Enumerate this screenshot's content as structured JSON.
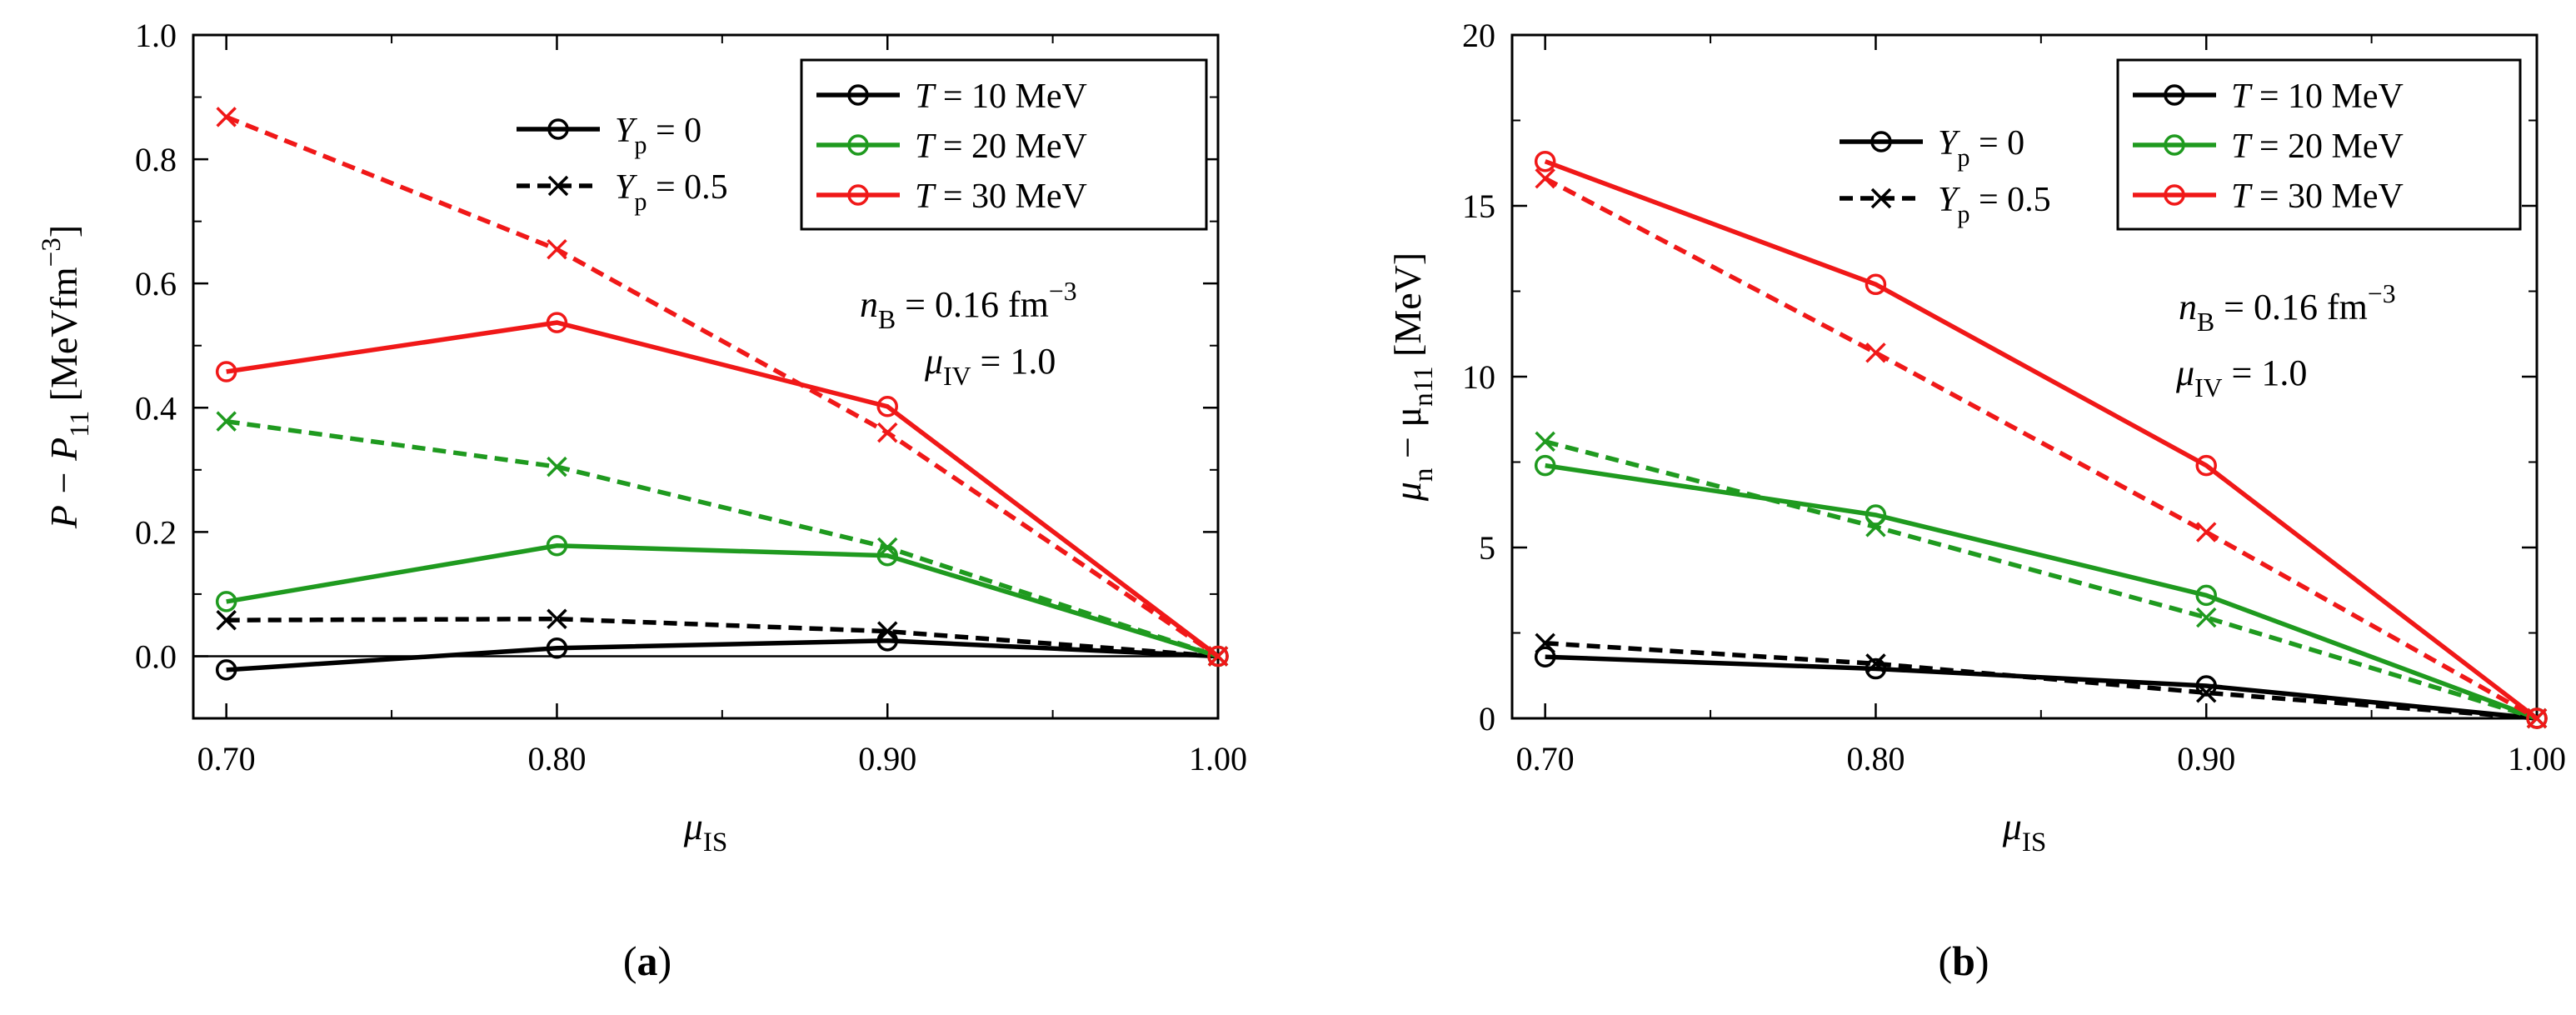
{
  "chart_data": [
    {
      "type": "line",
      "panel_label": [
        "(",
        "a",
        ")"
      ],
      "x": [
        0.7,
        0.8,
        0.9,
        1.0
      ],
      "xlim": [
        0.69,
        1.0
      ],
      "ylim": [
        -0.1,
        1.0
      ],
      "xticks": [
        "0.70",
        "0.80",
        "0.90",
        "1.00"
      ],
      "yticks": [
        "0.0",
        "0.2",
        "0.4",
        "0.6",
        "0.8",
        "1.0"
      ],
      "xlabel": {
        "main": "μ",
        "sub": "IS"
      },
      "ylabel": {
        "a": "P − P",
        "sub": "11",
        "b": " [MeVfm",
        "sup": "−3",
        "c": "]"
      },
      "zero_line": true,
      "legend_style": [
        {
          "text_a": "Y",
          "sub": "p",
          "text_b": " = 0",
          "line": "solid",
          "marker": "circle"
        },
        {
          "text_a": "Y",
          "sub": "p",
          "text_b": " = 0.5",
          "line": "dashed",
          "marker": "x"
        }
      ],
      "legend_temp": [
        {
          "text_a": "T",
          "text_b": " = 10 MeV",
          "color": "#000000"
        },
        {
          "text_a": "T",
          "text_b": " = 20 MeV",
          "color": "#1f9a1f"
        },
        {
          "text_a": "T",
          "text_b": " = 30 MeV",
          "color": "#f01818"
        }
      ],
      "annotations": [
        {
          "a": "n",
          "sub": "B",
          "b": " = 0.16 fm",
          "sup": "−3"
        },
        {
          "a": "μ",
          "sub": "IV",
          "b": " = 1.0",
          "sup": ""
        }
      ],
      "series": [
        {
          "T": "10",
          "Yp": "0",
          "color": "#000000",
          "line": "solid",
          "marker": "circle",
          "values": [
            -0.022,
            0.013,
            0.025,
            0.0
          ]
        },
        {
          "T": "10",
          "Yp": "0.5",
          "color": "#000000",
          "line": "dashed",
          "marker": "x",
          "values": [
            0.058,
            0.06,
            0.04,
            0.0
          ]
        },
        {
          "T": "20",
          "Yp": "0",
          "color": "#1f9a1f",
          "line": "solid",
          "marker": "circle",
          "values": [
            0.088,
            0.178,
            0.162,
            0.0
          ]
        },
        {
          "T": "20",
          "Yp": "0.5",
          "color": "#1f9a1f",
          "line": "dashed",
          "marker": "x",
          "values": [
            0.378,
            0.305,
            0.175,
            0.0
          ]
        },
        {
          "T": "30",
          "Yp": "0",
          "color": "#f01818",
          "line": "solid",
          "marker": "circle",
          "values": [
            0.458,
            0.537,
            0.402,
            0.0
          ]
        },
        {
          "T": "30",
          "Yp": "0.5",
          "color": "#f01818",
          "line": "dashed",
          "marker": "x",
          "values": [
            0.868,
            0.655,
            0.36,
            0.0
          ]
        }
      ]
    },
    {
      "type": "line",
      "panel_label": [
        "(",
        "b",
        ")"
      ],
      "x": [
        0.7,
        0.8,
        0.9,
        1.0
      ],
      "xlim": [
        0.69,
        1.0
      ],
      "ylim": [
        0,
        20
      ],
      "xticks": [
        "0.70",
        "0.80",
        "0.90",
        "1.00"
      ],
      "yticks": [
        "0",
        "5",
        "10",
        "15",
        "20"
      ],
      "xlabel": {
        "main": "μ",
        "sub": "IS"
      },
      "ylabel": {
        "a": "μ",
        "sub": "n",
        "b": " − μ",
        "sub2": "n11",
        "c": " [MeV]"
      },
      "zero_line": false,
      "legend_style": [
        {
          "text_a": "Y",
          "sub": "p",
          "text_b": " = 0",
          "line": "solid",
          "marker": "circle"
        },
        {
          "text_a": "Y",
          "sub": "p",
          "text_b": " = 0.5",
          "line": "dashed",
          "marker": "x"
        }
      ],
      "legend_temp": [
        {
          "text_a": "T",
          "text_b": " = 10 MeV",
          "color": "#000000"
        },
        {
          "text_a": "T",
          "text_b": " = 20 MeV",
          "color": "#1f9a1f"
        },
        {
          "text_a": "T",
          "text_b": " = 30 MeV",
          "color": "#f01818"
        }
      ],
      "annotations": [
        {
          "a": "n",
          "sub": "B",
          "b": " = 0.16 fm",
          "sup": "−3"
        },
        {
          "a": "μ",
          "sub": "IV",
          "b": " = 1.0",
          "sup": ""
        }
      ],
      "series": [
        {
          "T": "10",
          "Yp": "0",
          "color": "#000000",
          "line": "solid",
          "marker": "circle",
          "values": [
            1.8,
            1.45,
            0.95,
            0.0
          ]
        },
        {
          "T": "10",
          "Yp": "0.5",
          "color": "#000000",
          "line": "dashed",
          "marker": "x",
          "values": [
            2.2,
            1.6,
            0.75,
            0.0
          ]
        },
        {
          "T": "20",
          "Yp": "0",
          "color": "#1f9a1f",
          "line": "solid",
          "marker": "circle",
          "values": [
            7.4,
            5.95,
            3.6,
            0.0
          ]
        },
        {
          "T": "20",
          "Yp": "0.5",
          "color": "#1f9a1f",
          "line": "dashed",
          "marker": "x",
          "values": [
            8.1,
            5.6,
            2.95,
            0.0
          ]
        },
        {
          "T": "30",
          "Yp": "0",
          "color": "#f01818",
          "line": "solid",
          "marker": "circle",
          "values": [
            16.3,
            12.7,
            7.4,
            0.0
          ]
        },
        {
          "T": "30",
          "Yp": "0.5",
          "color": "#f01818",
          "line": "dashed",
          "marker": "x",
          "values": [
            15.8,
            10.7,
            5.45,
            0.0
          ]
        }
      ]
    }
  ]
}
